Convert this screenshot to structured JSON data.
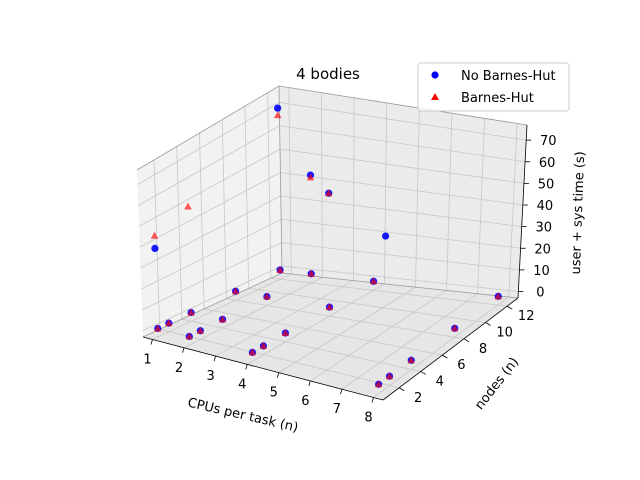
{
  "chart_data": {
    "type": "scatter",
    "title": "4 bodies",
    "xlabel": "CPUs per task (n)",
    "ylabel": "nodes (n)",
    "zlabel": "user + sys time (s)",
    "xlim": [
      0.7,
      8.3
    ],
    "ylim": [
      0.5,
      13
    ],
    "zlim": [
      -3,
      77
    ],
    "xticks": [
      "1",
      "2",
      "3",
      "4",
      "5",
      "6",
      "7",
      "8"
    ],
    "yticks": [
      "2",
      "4",
      "6",
      "8",
      "10",
      "12"
    ],
    "zticks": [
      "0",
      "10",
      "20",
      "30",
      "40",
      "50",
      "60",
      "70"
    ],
    "grid": true,
    "legend_position": "top-right",
    "series": [
      {
        "name": "No Barnes-Hut",
        "marker": "circle",
        "color": "#0000ff",
        "points": [
          {
            "x": 1,
            "y": 1,
            "z": 1
          },
          {
            "x": 1,
            "y": 2,
            "z": 1
          },
          {
            "x": 1,
            "y": 4,
            "z": 1
          },
          {
            "x": 1,
            "y": 8,
            "z": 1
          },
          {
            "x": 1,
            "y": 12,
            "z": 1
          },
          {
            "x": 2,
            "y": 1,
            "z": 1
          },
          {
            "x": 2,
            "y": 2,
            "z": 1
          },
          {
            "x": 2,
            "y": 4,
            "z": 1
          },
          {
            "x": 2,
            "y": 8,
            "z": 1
          },
          {
            "x": 2,
            "y": 12,
            "z": 1
          },
          {
            "x": 4,
            "y": 1,
            "z": 1
          },
          {
            "x": 4,
            "y": 2,
            "z": 1
          },
          {
            "x": 4,
            "y": 4,
            "z": 1
          },
          {
            "x": 4,
            "y": 8,
            "z": 1
          },
          {
            "x": 4,
            "y": 12,
            "z": 1
          },
          {
            "x": 8,
            "y": 1,
            "z": 1
          },
          {
            "x": 8,
            "y": 2,
            "z": 1
          },
          {
            "x": 8,
            "y": 4,
            "z": 1
          },
          {
            "x": 8,
            "y": 8,
            "z": 1
          },
          {
            "x": 8,
            "y": 12,
            "z": 1
          },
          {
            "x": 1,
            "y": 1,
            "z": 39
          },
          {
            "x": 1,
            "y": 12,
            "z": 71
          },
          {
            "x": 2,
            "y": 12,
            "z": 44
          },
          {
            "x": 4,
            "y": 8,
            "z": 52
          },
          {
            "x": 8,
            "y": 2,
            "z": 62
          }
        ]
      },
      {
        "name": "Barnes-Hut",
        "marker": "triangle",
        "color": "#ff0000",
        "points": [
          {
            "x": 1,
            "y": 1,
            "z": 1
          },
          {
            "x": 1,
            "y": 2,
            "z": 1
          },
          {
            "x": 1,
            "y": 4,
            "z": 1
          },
          {
            "x": 1,
            "y": 8,
            "z": 1
          },
          {
            "x": 1,
            "y": 12,
            "z": 1
          },
          {
            "x": 2,
            "y": 1,
            "z": 1
          },
          {
            "x": 2,
            "y": 2,
            "z": 1
          },
          {
            "x": 2,
            "y": 4,
            "z": 1
          },
          {
            "x": 2,
            "y": 8,
            "z": 1
          },
          {
            "x": 2,
            "y": 12,
            "z": 1
          },
          {
            "x": 4,
            "y": 1,
            "z": 1
          },
          {
            "x": 4,
            "y": 2,
            "z": 1
          },
          {
            "x": 4,
            "y": 4,
            "z": 1
          },
          {
            "x": 4,
            "y": 8,
            "z": 1
          },
          {
            "x": 4,
            "y": 12,
            "z": 1
          },
          {
            "x": 8,
            "y": 1,
            "z": 1
          },
          {
            "x": 8,
            "y": 2,
            "z": 1
          },
          {
            "x": 8,
            "y": 4,
            "z": 1
          },
          {
            "x": 8,
            "y": 8,
            "z": 1
          },
          {
            "x": 8,
            "y": 12,
            "z": 1
          },
          {
            "x": 1,
            "y": 1,
            "z": 45
          },
          {
            "x": 1,
            "y": 12,
            "z": 68
          },
          {
            "x": 2,
            "y": 12,
            "z": 43
          },
          {
            "x": 4,
            "y": 8,
            "z": 52
          },
          {
            "x": 1,
            "y": 4,
            "z": 50
          }
        ]
      }
    ]
  }
}
